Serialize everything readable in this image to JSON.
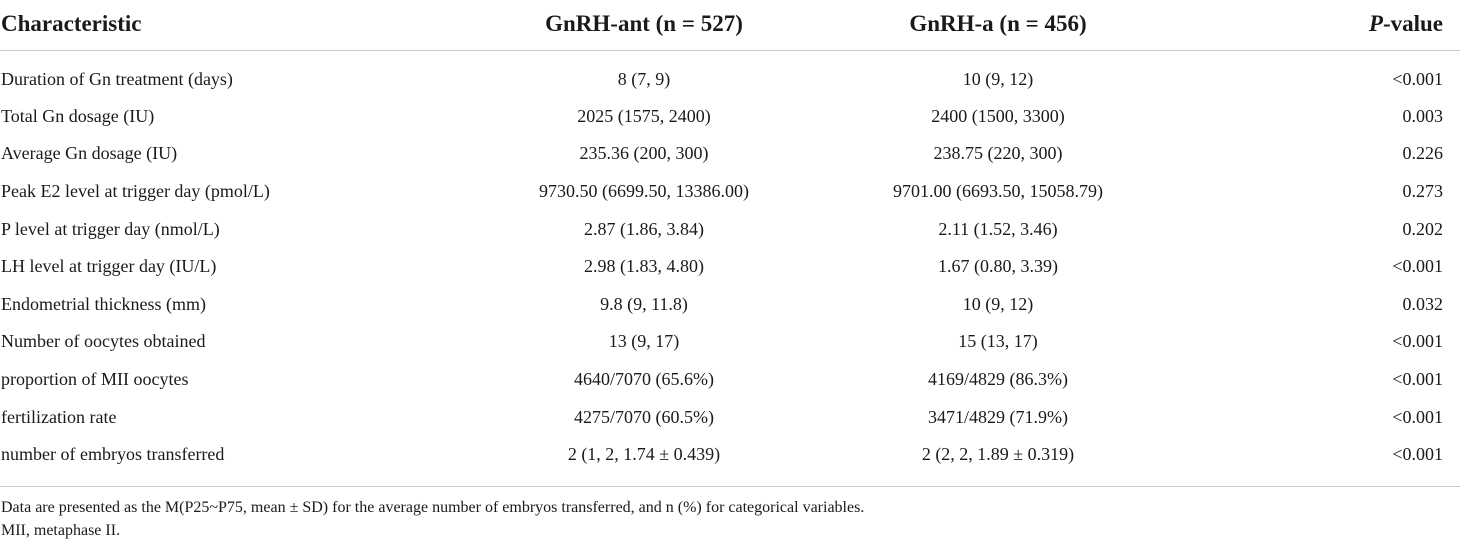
{
  "table": {
    "headers": [
      {
        "text": "Characteristic"
      },
      {
        "text": "GnRH-ant (n = 527)"
      },
      {
        "text": "GnRH-a (n = 456)"
      },
      {
        "text_italic": "P",
        "text_rest": "-value"
      }
    ],
    "rows": [
      {
        "characteristic": "Duration of Gn treatment (days)",
        "gnrh_ant": "8 (7, 9)",
        "gnrh_a": "10 (9, 12)",
        "p_value": "<0.001"
      },
      {
        "characteristic": "Total Gn dosage (IU)",
        "gnrh_ant": "2025 (1575, 2400)",
        "gnrh_a": "2400 (1500, 3300)",
        "p_value": "0.003"
      },
      {
        "characteristic": "Average Gn dosage (IU)",
        "gnrh_ant": "235.36 (200, 300)",
        "gnrh_a": "238.75 (220, 300)",
        "p_value": "0.226"
      },
      {
        "characteristic": "Peak E2 level at trigger day (pmol/L)",
        "gnrh_ant": "9730.50 (6699.50, 13386.00)",
        "gnrh_a": "9701.00 (6693.50, 15058.79)",
        "p_value": "0.273"
      },
      {
        "characteristic": "P level at trigger day (nmol/L)",
        "gnrh_ant": "2.87 (1.86, 3.84)",
        "gnrh_a": "2.11 (1.52, 3.46)",
        "p_value": "0.202"
      },
      {
        "characteristic": "LH level at trigger day (IU/L)",
        "gnrh_ant": "2.98 (1.83, 4.80)",
        "gnrh_a": "1.67 (0.80, 3.39)",
        "p_value": "<0.001"
      },
      {
        "characteristic": "Endometrial thickness (mm)",
        "gnrh_ant": "9.8 (9, 11.8)",
        "gnrh_a": "10 (9, 12)",
        "p_value": "0.032"
      },
      {
        "characteristic": "Number of oocytes obtained",
        "gnrh_ant": "13 (9, 17)",
        "gnrh_a": "15 (13, 17)",
        "p_value": "<0.001"
      },
      {
        "characteristic": "proportion of MII oocytes",
        "gnrh_ant": "4640/7070 (65.6%)",
        "gnrh_a": "4169/4829 (86.3%)",
        "p_value": "<0.001"
      },
      {
        "characteristic": "fertilization rate",
        "gnrh_ant": "4275/7070 (60.5%)",
        "gnrh_a": "3471/4829 (71.9%)",
        "p_value": "<0.001"
      },
      {
        "characteristic": "number of embryos transferred",
        "gnrh_ant": "2 (1, 2, 1.74 ± 0.439)",
        "gnrh_a": "2 (2, 2, 1.89 ± 0.319)",
        "p_value": "<0.001"
      }
    ]
  },
  "footnotes": [
    "Data are presented as the M(P25~P75, mean ± SD) for the average number of embryos transferred, and n (%) for categorical variables.",
    "MII, metaphase II."
  ]
}
